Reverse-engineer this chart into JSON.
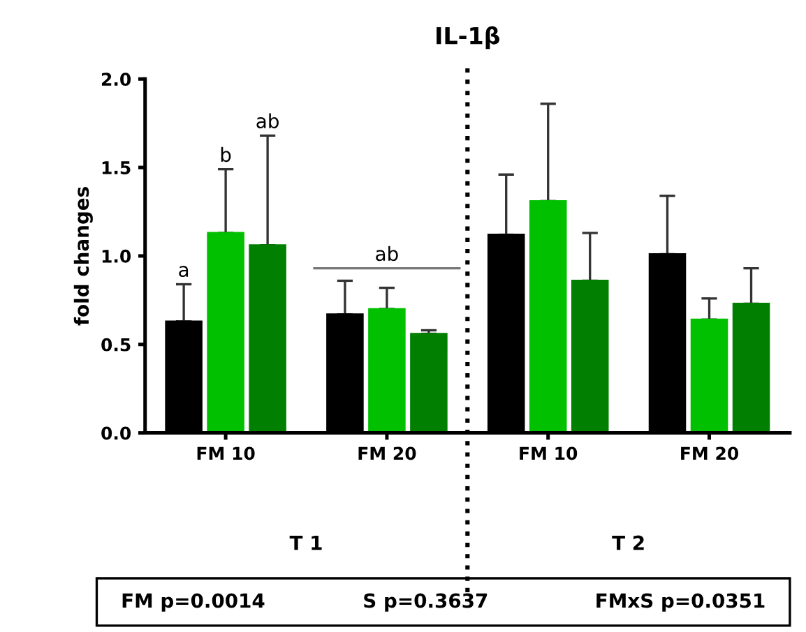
{
  "chart_data": {
    "type": "bar",
    "title": "IL-1β",
    "ylabel": "fold changes",
    "categories": [
      "FM 10",
      "FM 20",
      "FM 10",
      "FM 20"
    ],
    "series": [
      {
        "color": "#000000",
        "values": [
          0.63,
          0.67,
          1.12,
          1.01
        ],
        "errors": [
          [
            0.63,
            0.84
          ],
          [
            0.67,
            0.86
          ],
          [
            1.12,
            1.46
          ],
          [
            1.01,
            1.34
          ]
        ]
      },
      {
        "color": "#00c000",
        "values": [
          1.13,
          0.7,
          1.31,
          0.64
        ],
        "errors": [
          [
            1.13,
            1.49
          ],
          [
            0.7,
            0.82
          ],
          [
            1.31,
            1.86
          ],
          [
            0.64,
            0.76
          ]
        ]
      },
      {
        "color": "#007f00",
        "values": [
          1.06,
          0.56,
          0.86,
          0.73
        ],
        "errors": [
          [
            1.06,
            1.68
          ],
          [
            0.56,
            0.58
          ],
          [
            0.86,
            1.13
          ],
          [
            0.73,
            0.93
          ]
        ]
      }
    ],
    "ylim": [
      0,
      2.0
    ],
    "yticks": [
      {
        "value": 0,
        "label": "0.0"
      },
      {
        "value": 0.5,
        "label": "0.5"
      },
      {
        "value": 1,
        "label": "1.0"
      },
      {
        "value": 1.5,
        "label": "1.5"
      },
      {
        "value": 2,
        "label": "2.0"
      }
    ],
    "grid": false,
    "legend": false,
    "annotations": [
      "a",
      "b",
      "ab",
      "ab",
      "T 1",
      "T 2",
      "FM p=0.0014",
      "S p=0.3637",
      "FMxS p=0.0351"
    ]
  }
}
